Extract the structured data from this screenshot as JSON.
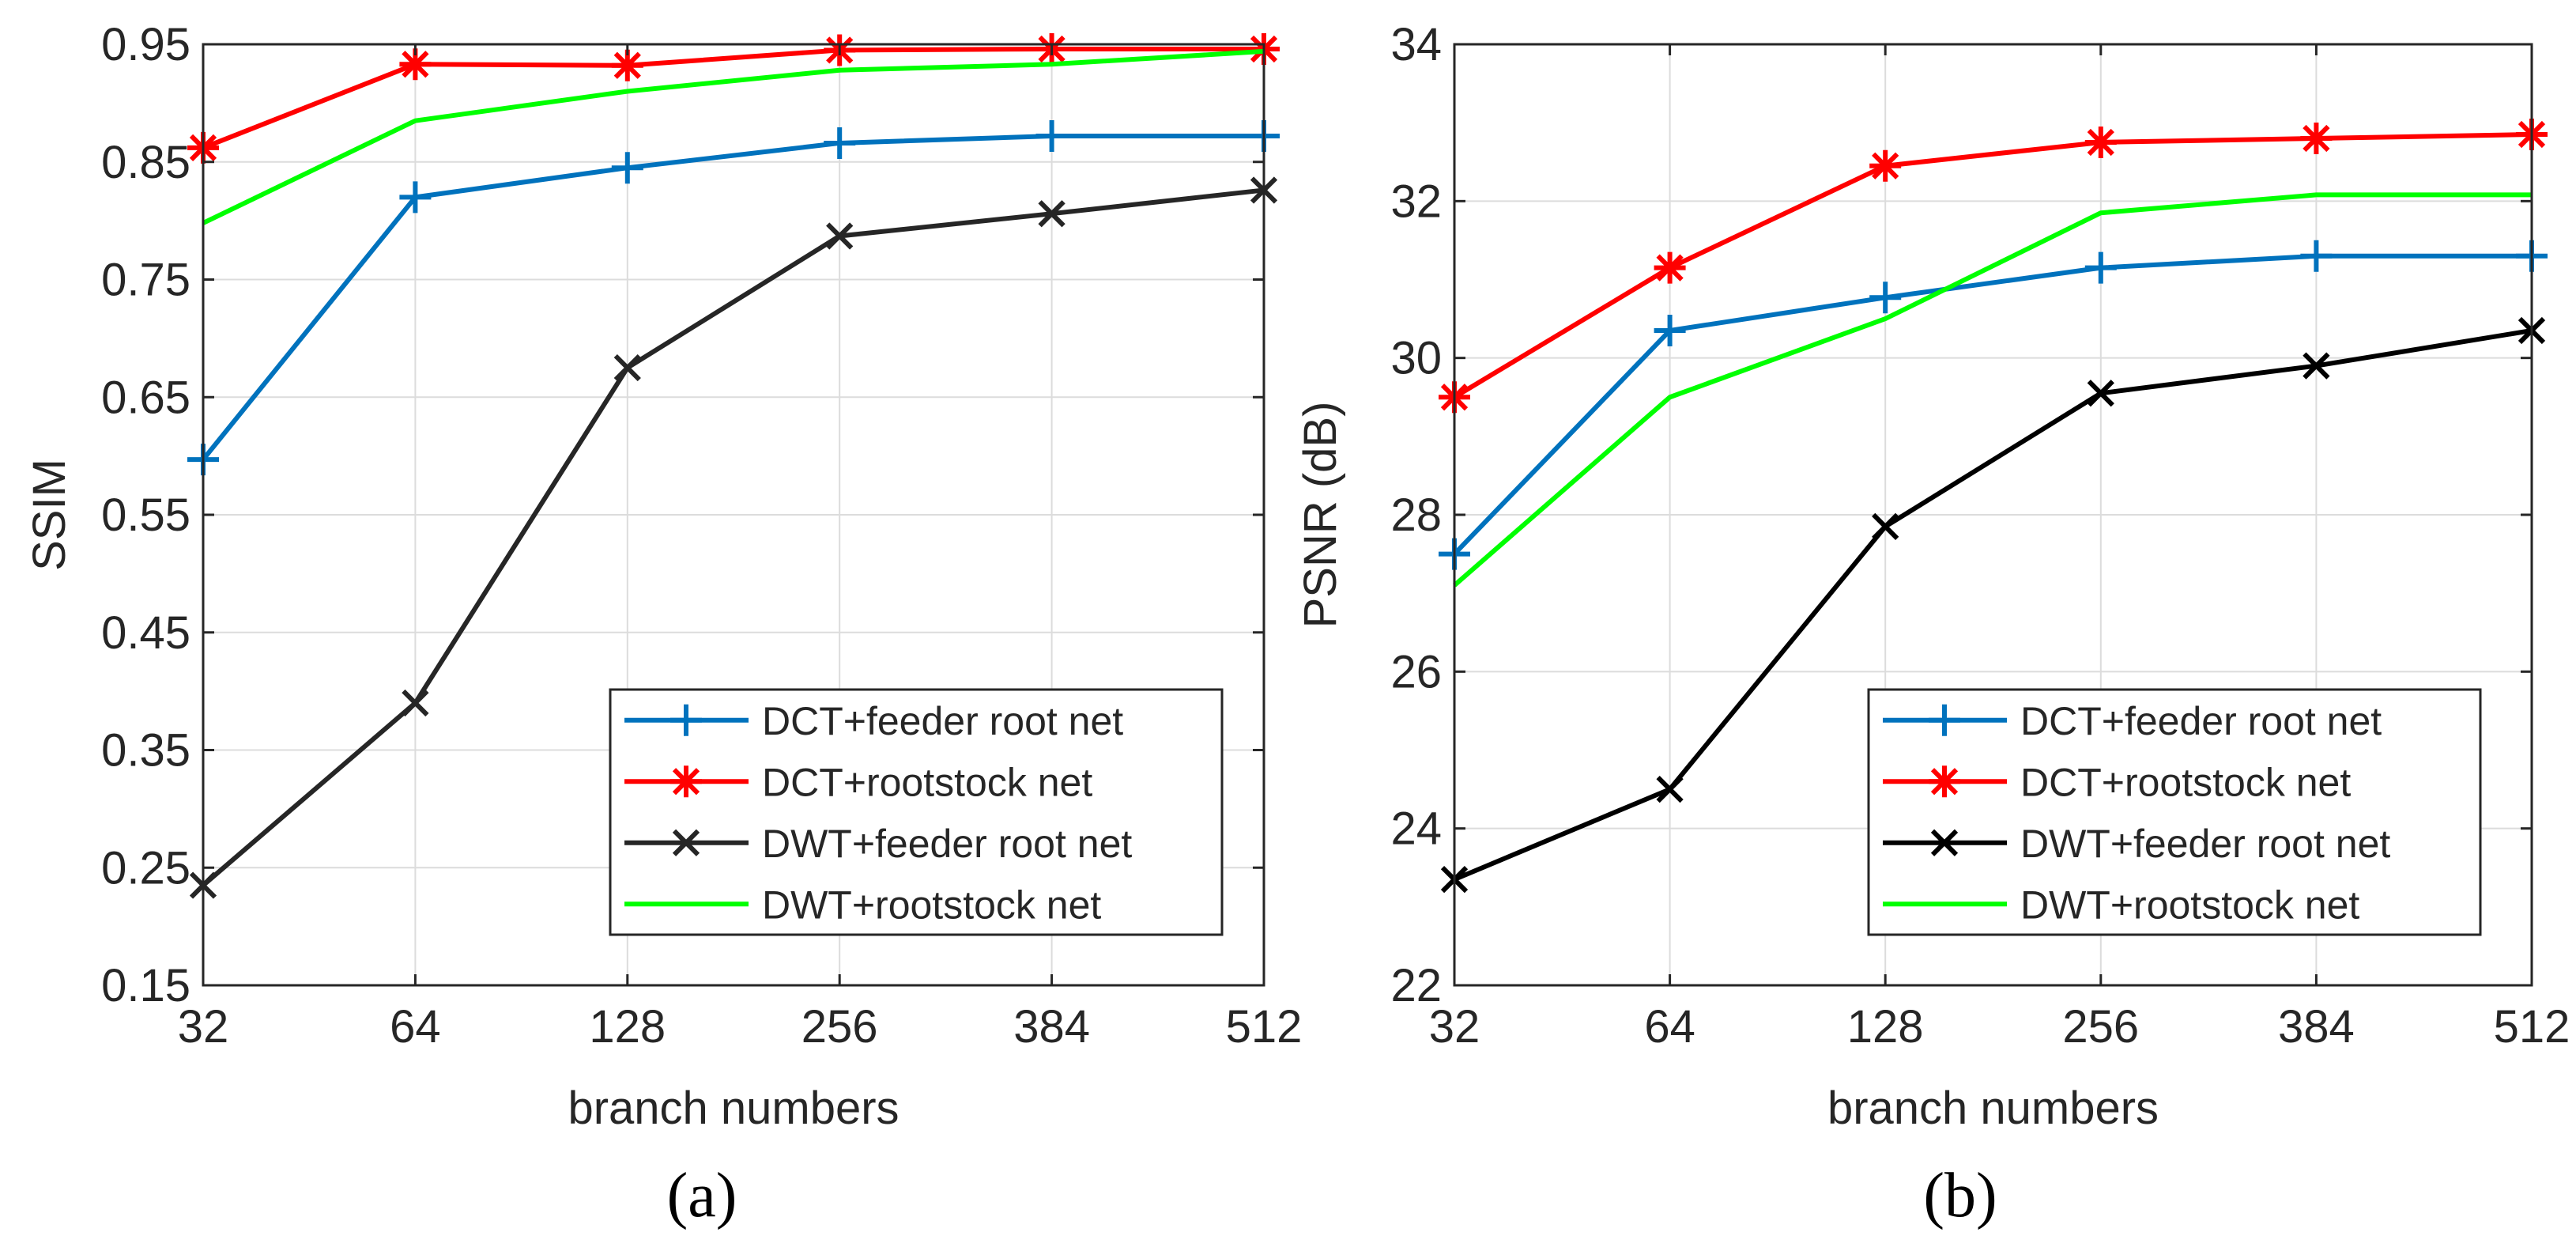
{
  "chart_data": [
    {
      "type": "line",
      "panel": "a",
      "caption": "(a)",
      "xlabel": "branch numbers",
      "ylabel": "SSIM",
      "categories": [
        "32",
        "64",
        "128",
        "256",
        "384",
        "512"
      ],
      "yticks": [
        "0.15",
        "0.25",
        "0.35",
        "0.45",
        "0.55",
        "0.65",
        "0.75",
        "0.85",
        "0.95"
      ],
      "ylim": [
        0.15,
        0.95
      ],
      "grid": true,
      "legend_position": "bottom-right",
      "series": [
        {
          "name": "DCT+feeder root net",
          "color": "#0072BD",
          "marker": "plus",
          "values": [
            0.597,
            0.82,
            0.845,
            0.866,
            0.872,
            0.872
          ]
        },
        {
          "name": "DCT+rootstock net",
          "color": "#FF0000",
          "marker": "asterisk",
          "values": [
            0.862,
            0.933,
            0.932,
            0.945,
            0.946,
            0.946
          ]
        },
        {
          "name": "DWT+feeder root net",
          "color": "#262626",
          "marker": "x",
          "values": [
            0.235,
            0.39,
            0.675,
            0.787,
            0.806,
            0.826
          ]
        },
        {
          "name": "DWT+rootstock net",
          "color": "#00FF00",
          "marker": "none",
          "values": [
            0.798,
            0.885,
            0.91,
            0.928,
            0.933,
            0.944
          ]
        }
      ]
    },
    {
      "type": "line",
      "panel": "b",
      "caption": "(b)",
      "xlabel": "branch numbers",
      "ylabel": "PSNR (dB)",
      "categories": [
        "32",
        "64",
        "128",
        "256",
        "384",
        "512"
      ],
      "yticks": [
        "22",
        "24",
        "26",
        "28",
        "30",
        "32",
        "34"
      ],
      "ylim": [
        22,
        34
      ],
      "grid": true,
      "legend_position": "bottom-right",
      "series": [
        {
          "name": "DCT+feeder root net",
          "color": "#0072BD",
          "marker": "plus",
          "values": [
            27.5,
            30.35,
            30.77,
            31.15,
            31.3,
            31.3
          ]
        },
        {
          "name": "DCT+rootstock net",
          "color": "#FF0000",
          "marker": "asterisk",
          "values": [
            29.5,
            31.15,
            32.45,
            32.75,
            32.8,
            32.85
          ]
        },
        {
          "name": "DWT+feeder root net",
          "color": "#000000",
          "marker": "x",
          "values": [
            23.35,
            24.5,
            27.85,
            29.55,
            29.9,
            30.35
          ]
        },
        {
          "name": "DWT+rootstock net",
          "color": "#00FF00",
          "marker": "none",
          "values": [
            27.1,
            29.5,
            30.5,
            31.85,
            32.08,
            32.08
          ]
        }
      ]
    }
  ]
}
